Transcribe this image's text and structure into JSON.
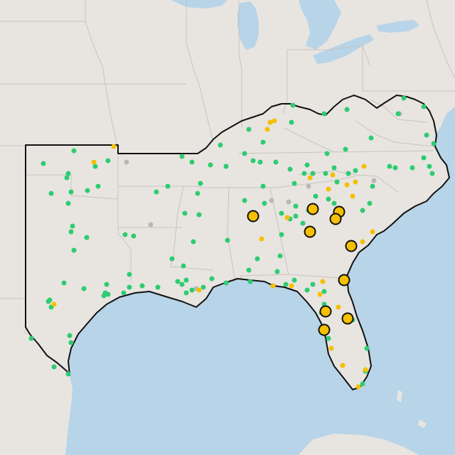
{
  "colors": {
    "land": "#e8e5e1",
    "water": "#b8d4e8",
    "state_border": "#c7c3bf",
    "region_outline": "#111111",
    "status_green": "#2ecc71",
    "status_yellow": "#f5c000",
    "status_gray": "#b8b8b8",
    "highlight_stroke": "#111111"
  },
  "legend": {}
}
